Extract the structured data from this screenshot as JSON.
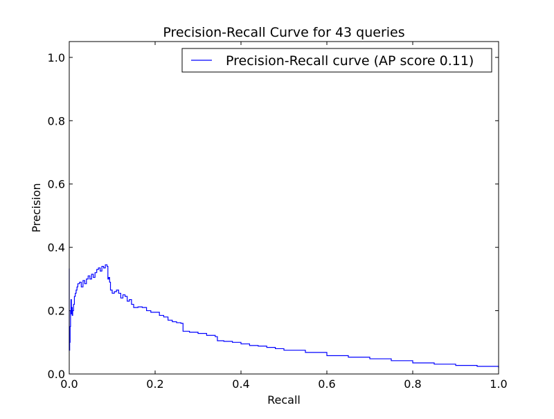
{
  "chart_data": {
    "type": "line",
    "title": "Precision-Recall Curve for 43 queries",
    "xlabel": "Recall",
    "ylabel": "Precision",
    "xlim": [
      0.0,
      1.0
    ],
    "ylim": [
      0.0,
      1.05
    ],
    "xticks": [
      "0.0",
      "0.2",
      "0.4",
      "0.6",
      "0.8",
      "1.0"
    ],
    "yticks": [
      "0.0",
      "0.2",
      "0.4",
      "0.6",
      "0.8",
      "1.0"
    ],
    "grid": false,
    "legend_position": "top-right",
    "series": [
      {
        "name": "Precision-Recall curve (AP score 0.11)",
        "color": "#0000ff",
        "x": [
          0.0,
          0.0,
          0.001,
          0.002,
          0.003,
          0.004,
          0.005,
          0.006,
          0.007,
          0.008,
          0.01,
          0.012,
          0.014,
          0.016,
          0.018,
          0.02,
          0.024,
          0.028,
          0.032,
          0.036,
          0.04,
          0.044,
          0.048,
          0.052,
          0.056,
          0.06,
          0.064,
          0.068,
          0.072,
          0.076,
          0.08,
          0.084,
          0.088,
          0.09,
          0.092,
          0.094,
          0.096,
          0.1,
          0.105,
          0.11,
          0.115,
          0.12,
          0.125,
          0.13,
          0.135,
          0.14,
          0.145,
          0.15,
          0.16,
          0.17,
          0.18,
          0.19,
          0.2,
          0.21,
          0.22,
          0.23,
          0.24,
          0.25,
          0.26,
          0.265,
          0.28,
          0.3,
          0.32,
          0.34,
          0.345,
          0.36,
          0.38,
          0.4,
          0.42,
          0.44,
          0.46,
          0.48,
          0.5,
          0.55,
          0.6,
          0.65,
          0.7,
          0.75,
          0.8,
          0.85,
          0.9,
          0.95,
          1.0
        ],
        "y": [
          0.333,
          0.075,
          0.1,
          0.15,
          0.2,
          0.235,
          0.19,
          0.21,
          0.185,
          0.2,
          0.22,
          0.245,
          0.255,
          0.265,
          0.275,
          0.285,
          0.29,
          0.275,
          0.295,
          0.285,
          0.3,
          0.31,
          0.3,
          0.315,
          0.305,
          0.32,
          0.33,
          0.335,
          0.325,
          0.34,
          0.335,
          0.345,
          0.34,
          0.3,
          0.305,
          0.29,
          0.265,
          0.255,
          0.26,
          0.265,
          0.255,
          0.24,
          0.25,
          0.245,
          0.23,
          0.235,
          0.22,
          0.21,
          0.212,
          0.21,
          0.2,
          0.195,
          0.195,
          0.185,
          0.18,
          0.17,
          0.165,
          0.162,
          0.16,
          0.135,
          0.132,
          0.128,
          0.122,
          0.118,
          0.105,
          0.103,
          0.1,
          0.095,
          0.09,
          0.088,
          0.084,
          0.08,
          0.075,
          0.068,
          0.058,
          0.053,
          0.048,
          0.042,
          0.035,
          0.031,
          0.027,
          0.024,
          0.019
        ]
      }
    ]
  }
}
